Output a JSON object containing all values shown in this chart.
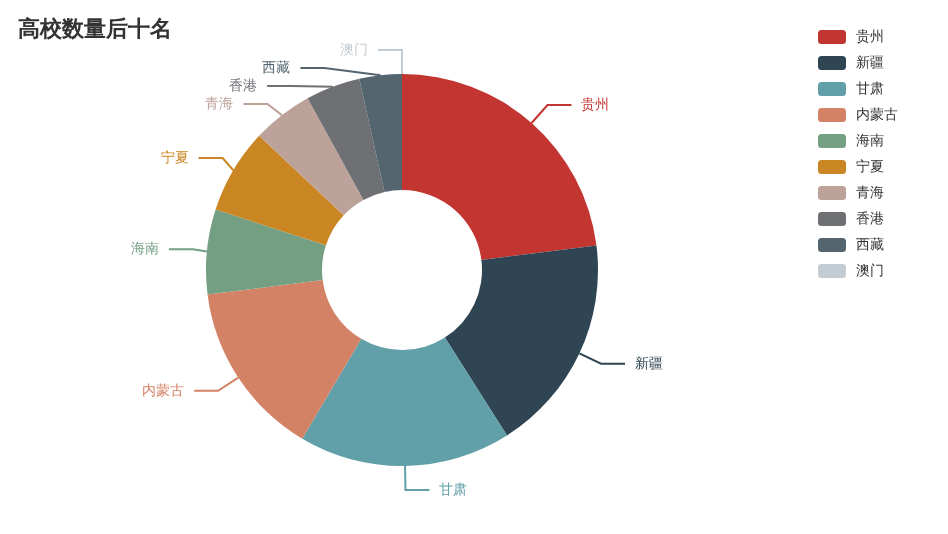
{
  "chart_data": {
    "type": "donut",
    "title": "高校数量后十名",
    "categories": [
      "贵州",
      "新疆",
      "甘肃",
      "内蒙古",
      "海南",
      "宁夏",
      "青海",
      "香港",
      "西藏",
      "澳门"
    ],
    "values": [
      23,
      18,
      17.5,
      14.5,
      7,
      7,
      5,
      4.5,
      3.5,
      0
    ],
    "colors": [
      "#c23531",
      "#2f4554",
      "#61a0a8",
      "#d48265",
      "#749f83",
      "#ca8622",
      "#bda29a",
      "#6e7074",
      "#546570",
      "#c4ccd3"
    ],
    "legend": "top right"
  }
}
